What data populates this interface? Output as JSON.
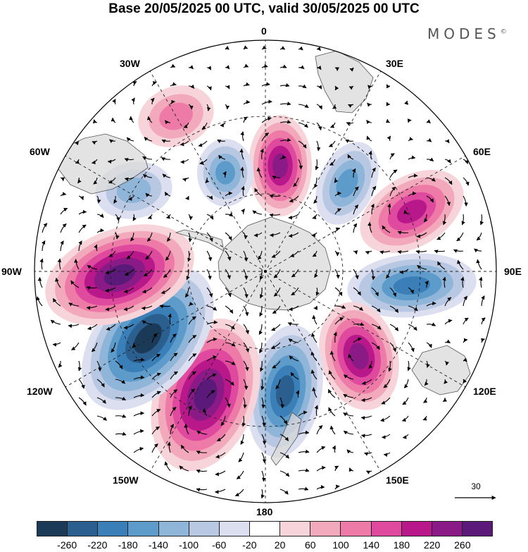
{
  "title": "Base 20/05/2025 00 UTC, valid 30/05/2025 00 UTC",
  "brand": "MODES",
  "brand_mark": "©",
  "longitude_labels": {
    "lon_0": "0",
    "lon_30e": "30E",
    "lon_60e": "60E",
    "lon_90e": "90E",
    "lon_120e": "120E",
    "lon_150e": "150E",
    "lon_180": "180",
    "lon_150w": "150W",
    "lon_120w": "120W",
    "lon_90w": "90W",
    "lon_60w": "60W",
    "lon_30w": "30W"
  },
  "reference_vector": "30",
  "colorbar": {
    "colors": [
      "#1b3a57",
      "#2a5f8f",
      "#3a7fb8",
      "#5d9bcb",
      "#8fb5d9",
      "#b8c8e2",
      "#dcdff0",
      "#ffffff",
      "#f7d4d9",
      "#f2a9bc",
      "#ee7aa8",
      "#df4a9e",
      "#b8188a",
      "#8a1a86",
      "#5b1a7a"
    ],
    "tick_labels": [
      "-260",
      "-220",
      "-180",
      "-140",
      "-100",
      "-60",
      "-20",
      "20",
      "60",
      "100",
      "140",
      "180",
      "220",
      "260"
    ]
  },
  "map": {
    "projection": "south-polar-stereographic",
    "field_note_colors": {
      "land": "#d9d9d9",
      "graticule": "#222222"
    },
    "anomaly_centers": [
      {
        "name": "positive-30w",
        "sign": "positive",
        "strength": 100
      },
      {
        "name": "positive-0",
        "sign": "positive",
        "strength": 220
      },
      {
        "name": "negative-45e",
        "sign": "negative",
        "strength": 140
      },
      {
        "name": "positive-60e",
        "sign": "positive",
        "strength": 180
      },
      {
        "name": "negative-90e",
        "sign": "negative",
        "strength": 180
      },
      {
        "name": "positive-120e",
        "sign": "positive",
        "strength": 220
      },
      {
        "name": "negative-160e",
        "sign": "negative",
        "strength": 220
      },
      {
        "name": "positive-150w",
        "sign": "positive",
        "strength": 260
      },
      {
        "name": "negative-120w",
        "sign": "negative",
        "strength": 260
      },
      {
        "name": "positive-90w",
        "sign": "positive",
        "strength": 260
      },
      {
        "name": "negative-60w",
        "sign": "negative",
        "strength": 100
      },
      {
        "name": "negative-25w",
        "sign": "negative",
        "strength": 140
      }
    ]
  }
}
